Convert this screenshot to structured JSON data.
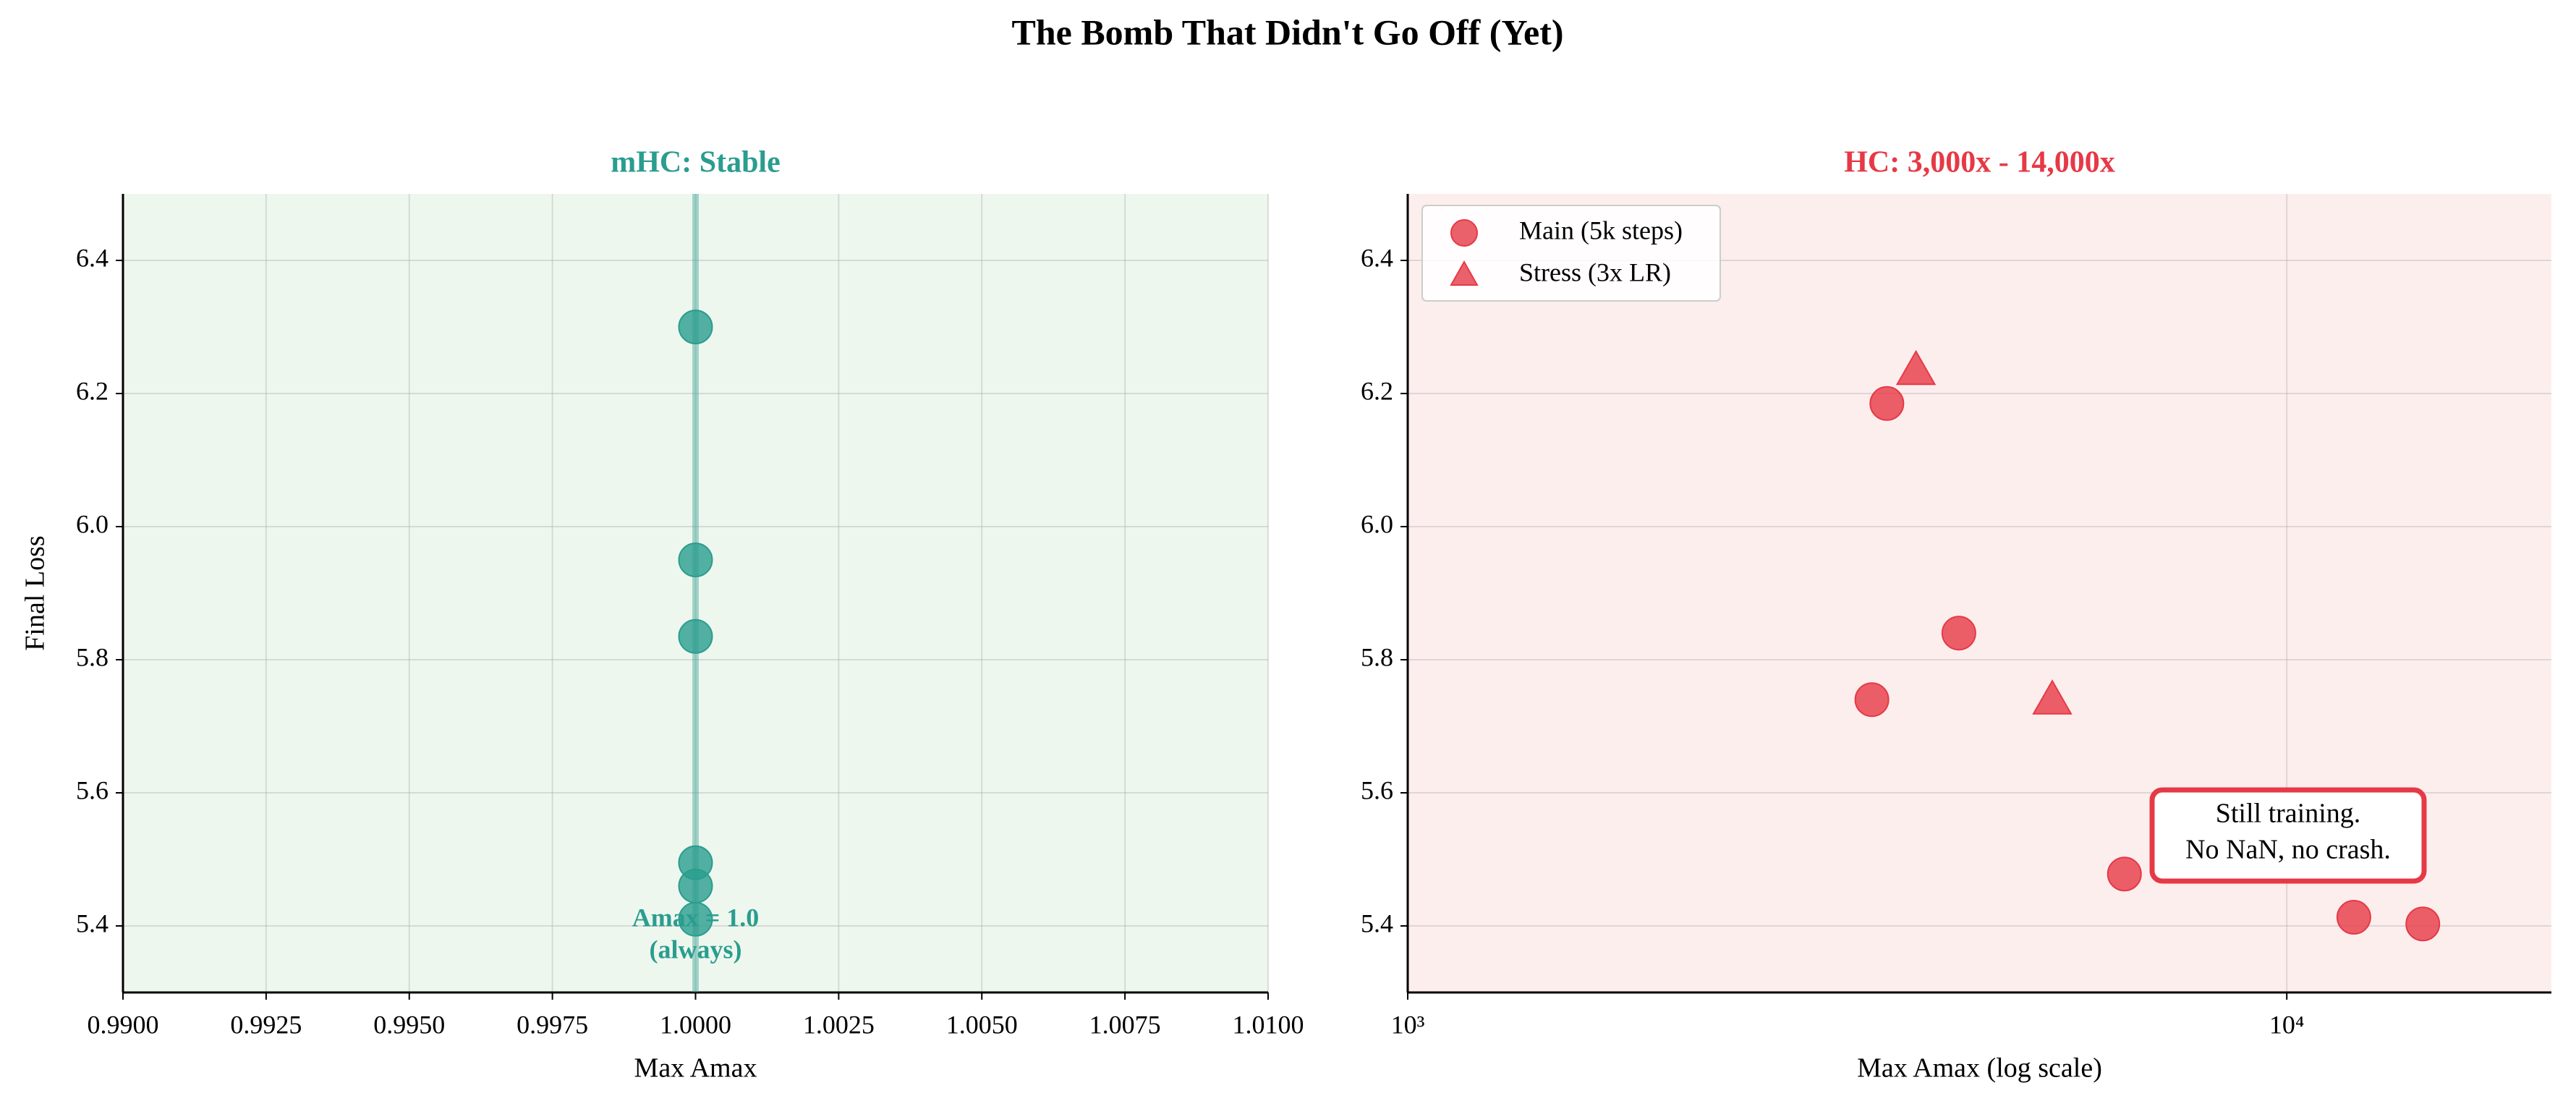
{
  "title": "The Bomb That Didn't Go Off (Yet)",
  "chart_data": [
    {
      "type": "scatter",
      "title": "mHC: Stable",
      "x_label": "Max Amax",
      "y_label": "Final Loss",
      "xlim": [
        0.99,
        1.01
      ],
      "xticks": [
        {
          "value": 0.99,
          "label": "0.9900"
        },
        {
          "value": 0.9925,
          "label": "0.9925"
        },
        {
          "value": 0.995,
          "label": "0.9950"
        },
        {
          "value": 0.9975,
          "label": "0.9975"
        },
        {
          "value": 1,
          "label": "1.0000"
        },
        {
          "value": 1.0025,
          "label": "1.0025"
        },
        {
          "value": 1.005,
          "label": "1.0050"
        },
        {
          "value": 1.0075,
          "label": "1.0075"
        },
        {
          "value": 1.01,
          "label": "1.0100"
        }
      ],
      "ylim": [
        5.3,
        6.5
      ],
      "yticks": [
        5.4,
        5.6,
        5.8,
        {
          "value": 6,
          "label": "6.0"
        },
        6.2,
        6.4
      ],
      "grid": true,
      "background": "#eef7ee",
      "reference_x": 1,
      "annotation": [
        "Amax = 1.0",
        "(always)"
      ],
      "series": [
        {
          "color": "#2a9d8f",
          "marker": "circle",
          "x": [
            1,
            1,
            1,
            1,
            1,
            1
          ],
          "values": [
            6.3,
            5.95,
            5.835,
            5.495,
            5.46,
            5.41
          ]
        }
      ]
    },
    {
      "type": "scatter",
      "title": "HC: 3,000x - 14,000x",
      "x_label": "Max Amax (log scale)",
      "xscale": "log",
      "xlim": [
        1000,
        20000
      ],
      "xticks": [
        {
          "value": 1000,
          "label": "10³"
        },
        {
          "value": 10000,
          "label": "10⁴"
        }
      ],
      "ylim": [
        5.3,
        6.5
      ],
      "yticks": [
        5.4,
        5.6,
        5.8,
        {
          "value": 6,
          "label": "6.0"
        },
        6.2,
        6.4
      ],
      "grid": true,
      "background": "#fdeeee",
      "legend": "upper left",
      "annotation": [
        "Still training.",
        "No NaN, no crash."
      ],
      "series": [
        {
          "name": "Main (5k steps)",
          "color": "#e63946",
          "marker": "circle",
          "x": [
            3508,
            4236,
            3373,
            6536,
            11920,
            14280
          ],
          "values": [
            6.185,
            5.84,
            5.74,
            5.478,
            5.413,
            5.403
          ]
        },
        {
          "name": "Stress (3x LR)",
          "color": "#e63946",
          "marker": "triangle",
          "x": [
            3786,
            5410
          ],
          "values": [
            6.235,
            5.74
          ]
        }
      ]
    }
  ]
}
